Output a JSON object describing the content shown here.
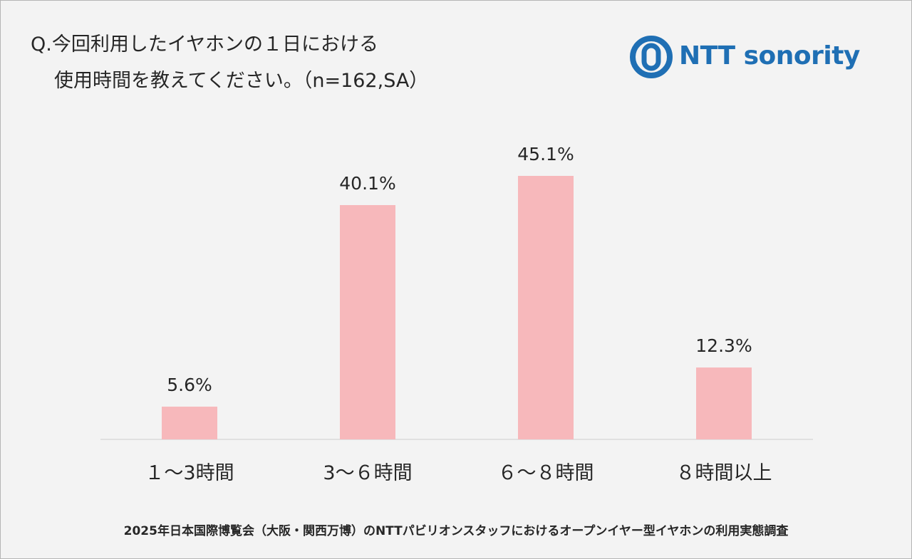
{
  "question": {
    "line1": "Q.今回利用したイヤホンの１日における",
    "line2": "使用時間を教えてください。（n=162,SA）"
  },
  "logo": {
    "text": "NTT sonority",
    "icon": "sonority-ring-logo-icon",
    "color": "#1f6fb4"
  },
  "chart_data": {
    "type": "bar",
    "categories": [
      "１～3時間",
      "3～６時間",
      "６～８時間",
      "８時間以上"
    ],
    "values": [
      5.6,
      40.1,
      45.1,
      12.3
    ],
    "value_labels": [
      "5.6%",
      "40.1%",
      "45.1%",
      "12.3%"
    ],
    "title": "",
    "xlabel": "",
    "ylabel": "",
    "ylim": [
      0,
      50
    ],
    "grid": false,
    "bar_color": "#f7b8bb",
    "axis_color": "#d9d9d9"
  },
  "footer": {
    "text": "2025年日本国際博覧会（大阪・関西万博）のNTTパビリオンスタッフにおけるオープンイヤー型イヤホンの利用実態調査"
  }
}
